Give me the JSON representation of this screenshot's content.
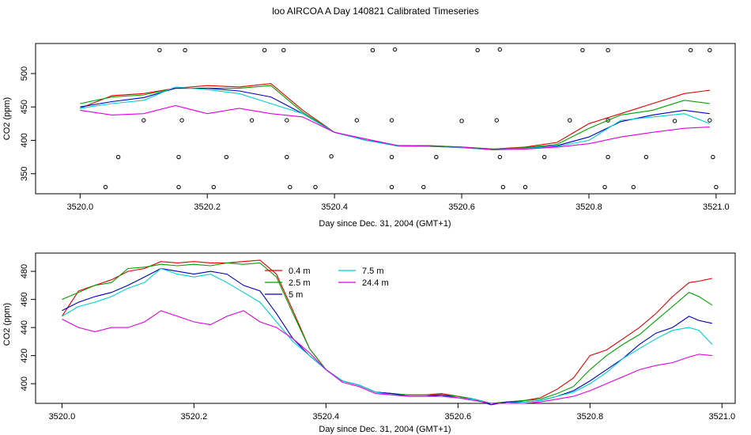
{
  "title": "loo AIRCOA A  Day 140821  Calibrated Timeseries",
  "chart_data": [
    {
      "type": "scatter",
      "xlabel": "Day since Dec. 31, 2004 (GMT+1)",
      "ylabel": "CO2 (ppm)",
      "xlim": [
        3519.93,
        3521.03
      ],
      "ylim": [
        320,
        545
      ],
      "xticks": [
        3520.0,
        3520.2,
        3520.4,
        3520.6,
        3520.8,
        3521.0
      ],
      "xtick_labels": [
        "3520.0",
        "3520.2",
        "3520.4",
        "3520.6",
        "3520.8",
        "3521.0"
      ],
      "yticks": [
        350,
        400,
        450,
        500
      ],
      "ytick_labels": [
        "350",
        "400",
        "450",
        "500"
      ],
      "x": [
        3520.0,
        3520.05,
        3520.1,
        3520.15,
        3520.2,
        3520.25,
        3520.3,
        3520.35,
        3520.4,
        3520.45,
        3520.5,
        3520.55,
        3520.6,
        3520.65,
        3520.7,
        3520.75,
        3520.8,
        3520.85,
        3520.9,
        3520.95,
        3520.99
      ],
      "series": [
        {
          "color": "#e00000",
          "values": [
            448,
            467,
            470,
            478,
            482,
            480,
            485,
            445,
            412,
            400,
            392,
            392,
            390,
            387,
            390,
            397,
            425,
            440,
            455,
            470,
            475
          ]
        },
        {
          "color": "#00a000",
          "values": [
            455,
            465,
            468,
            478,
            478,
            478,
            482,
            442,
            412,
            400,
            392,
            392,
            390,
            387,
            389,
            394,
            418,
            438,
            445,
            460,
            455
          ]
        },
        {
          "color": "#0000c0",
          "values": [
            450,
            458,
            464,
            478,
            478,
            474,
            465,
            440,
            412,
            400,
            392,
            391,
            389,
            386,
            388,
            392,
            405,
            428,
            438,
            445,
            440
          ]
        },
        {
          "color": "#00d0d0",
          "values": [
            448,
            455,
            460,
            480,
            476,
            470,
            455,
            440,
            412,
            400,
            391,
            391,
            389,
            386,
            388,
            391,
            400,
            430,
            435,
            440,
            425
          ]
        },
        {
          "color": "#e000e0",
          "values": [
            445,
            438,
            440,
            452,
            440,
            448,
            440,
            435,
            412,
            402,
            392,
            391,
            390,
            386,
            387,
            390,
            395,
            405,
            412,
            418,
            420
          ]
        }
      ],
      "markers": {
        "x": [
          3520.04,
          3520.06,
          3520.1,
          3520.125,
          3520.155,
          3520.155,
          3520.16,
          3520.165,
          3520.21,
          3520.23,
          3520.27,
          3520.29,
          3520.32,
          3520.325,
          3520.325,
          3520.33,
          3520.37,
          3520.395,
          3520.435,
          3520.46,
          3520.49,
          3520.49,
          3520.49,
          3520.495,
          3520.54,
          3520.56,
          3520.6,
          3520.625,
          3520.655,
          3520.66,
          3520.66,
          3520.665,
          3520.7,
          3520.73,
          3520.77,
          3520.79,
          3520.825,
          3520.83,
          3520.83,
          3520.83,
          3520.87,
          3520.89,
          3520.935,
          3520.96,
          3520.99,
          3520.99,
          3520.995,
          3521.0
        ],
        "y": [
          330,
          375,
          430,
          535,
          330,
          375,
          430,
          535,
          330,
          375,
          430,
          535,
          535,
          430,
          375,
          330,
          330,
          376,
          430,
          535,
          330,
          375,
          430,
          536,
          330,
          375,
          429,
          535,
          430,
          536,
          375,
          330,
          330,
          375,
          430,
          535,
          330,
          375,
          430,
          535,
          330,
          375,
          429,
          535,
          535,
          430,
          375,
          330
        ]
      }
    },
    {
      "type": "line",
      "xlabel": "Day since Dec. 31, 2004 (GMT+1)",
      "ylabel": "CO2 (ppm)",
      "xlim": [
        3519.96,
        3521.02
      ],
      "ylim": [
        386,
        493
      ],
      "xticks": [
        3520.0,
        3520.2,
        3520.4,
        3520.6,
        3520.8,
        3521.0
      ],
      "xtick_labels": [
        "3520.0",
        "3520.2",
        "3520.4",
        "3520.6",
        "3520.8",
        "3521.0"
      ],
      "yticks": [
        400,
        420,
        440,
        460,
        480
      ],
      "ytick_labels": [
        "400",
        "420",
        "440",
        "460",
        "480"
      ],
      "legend_placement": "top-center",
      "x": [
        3520.0,
        3520.025,
        3520.05,
        3520.075,
        3520.1,
        3520.125,
        3520.15,
        3520.175,
        3520.2,
        3520.225,
        3520.25,
        3520.275,
        3520.3,
        3520.325,
        3520.35,
        3520.375,
        3520.4,
        3520.425,
        3520.45,
        3520.475,
        3520.5,
        3520.525,
        3520.55,
        3520.575,
        3520.6,
        3520.625,
        3520.65,
        3520.675,
        3520.7,
        3520.725,
        3520.75,
        3520.775,
        3520.8,
        3520.825,
        3520.85,
        3520.875,
        3520.9,
        3520.925,
        3520.95,
        3520.965,
        3520.985
      ],
      "series": [
        {
          "name": "0.4 m",
          "color": "#e00000",
          "values": [
            448,
            466,
            470,
            474,
            480,
            482,
            487,
            486,
            487,
            486,
            486,
            487,
            488,
            478,
            452,
            425,
            410,
            402,
            399,
            394,
            393,
            392,
            392,
            393,
            391,
            389,
            386,
            387,
            388,
            390,
            396,
            404,
            420,
            424,
            432,
            440,
            450,
            462,
            472,
            473,
            475
          ]
        },
        {
          "name": "2.5 m",
          "color": "#00a000",
          "values": [
            460,
            465,
            470,
            472,
            482,
            483,
            485,
            484,
            485,
            484,
            486,
            485,
            486,
            476,
            450,
            425,
            410,
            402,
            399,
            394,
            393,
            392,
            392,
            392,
            391,
            389,
            386,
            387,
            388,
            389,
            393,
            398,
            410,
            420,
            428,
            435,
            445,
            455,
            465,
            462,
            456
          ]
        },
        {
          "name": "5 m",
          "color": "#0000c0",
          "values": [
            452,
            458,
            462,
            465,
            470,
            476,
            482,
            480,
            478,
            480,
            478,
            470,
            466,
            450,
            432,
            420,
            410,
            402,
            399,
            394,
            393,
            391,
            391,
            392,
            390,
            389,
            385,
            387,
            387,
            388,
            391,
            395,
            402,
            410,
            418,
            428,
            436,
            440,
            448,
            445,
            443
          ]
        },
        {
          "name": "7.5 m",
          "color": "#00d0d0",
          "values": [
            448,
            455,
            458,
            462,
            468,
            472,
            482,
            478,
            476,
            478,
            472,
            465,
            458,
            444,
            430,
            420,
            410,
            402,
            399,
            394,
            392,
            391,
            391,
            391,
            390,
            389,
            386,
            386,
            387,
            388,
            391,
            394,
            400,
            408,
            418,
            425,
            432,
            438,
            440,
            438,
            428
          ]
        },
        {
          "name": "24.4 m",
          "color": "#e000e0",
          "values": [
            446,
            440,
            437,
            440,
            440,
            444,
            452,
            448,
            444,
            442,
            448,
            452,
            444,
            440,
            432,
            422,
            410,
            401,
            398,
            393,
            392,
            391,
            391,
            391,
            390,
            388,
            386,
            386,
            386,
            387,
            389,
            391,
            395,
            400,
            405,
            410,
            413,
            415,
            419,
            421,
            420
          ]
        }
      ]
    }
  ]
}
